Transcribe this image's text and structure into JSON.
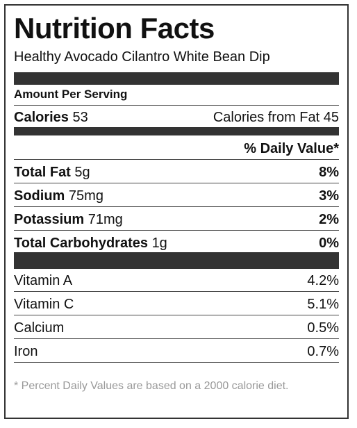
{
  "label": {
    "title": "Nutrition Facts",
    "recipe_name": "Healthy Avocado Cilantro White Bean Dip",
    "amount_per_serving": "Amount Per Serving",
    "calories": {
      "label": "Calories",
      "value": "53"
    },
    "calories_from_fat": "Calories from Fat 45",
    "daily_value_header": "% Daily Value*",
    "nutrients": [
      {
        "name": "Total Fat",
        "amount": "5g",
        "percent": "8%"
      },
      {
        "name": "Sodium",
        "amount": "75mg",
        "percent": "3%"
      },
      {
        "name": "Potassium",
        "amount": "71mg",
        "percent": "2%"
      },
      {
        "name": "Total Carbohydrates",
        "amount": "1g",
        "percent": "0%"
      }
    ],
    "vitamins": [
      {
        "name": "Vitamin A",
        "percent": "4.2%"
      },
      {
        "name": "Vitamin C",
        "percent": "5.1%"
      },
      {
        "name": "Calcium",
        "percent": "0.5%"
      },
      {
        "name": "Iron",
        "percent": "0.7%"
      }
    ],
    "footnote": "* Percent Daily Values are based on a 2000 calorie diet."
  },
  "colors": {
    "border": "#333333",
    "text": "#111111",
    "footnote": "#999999"
  }
}
